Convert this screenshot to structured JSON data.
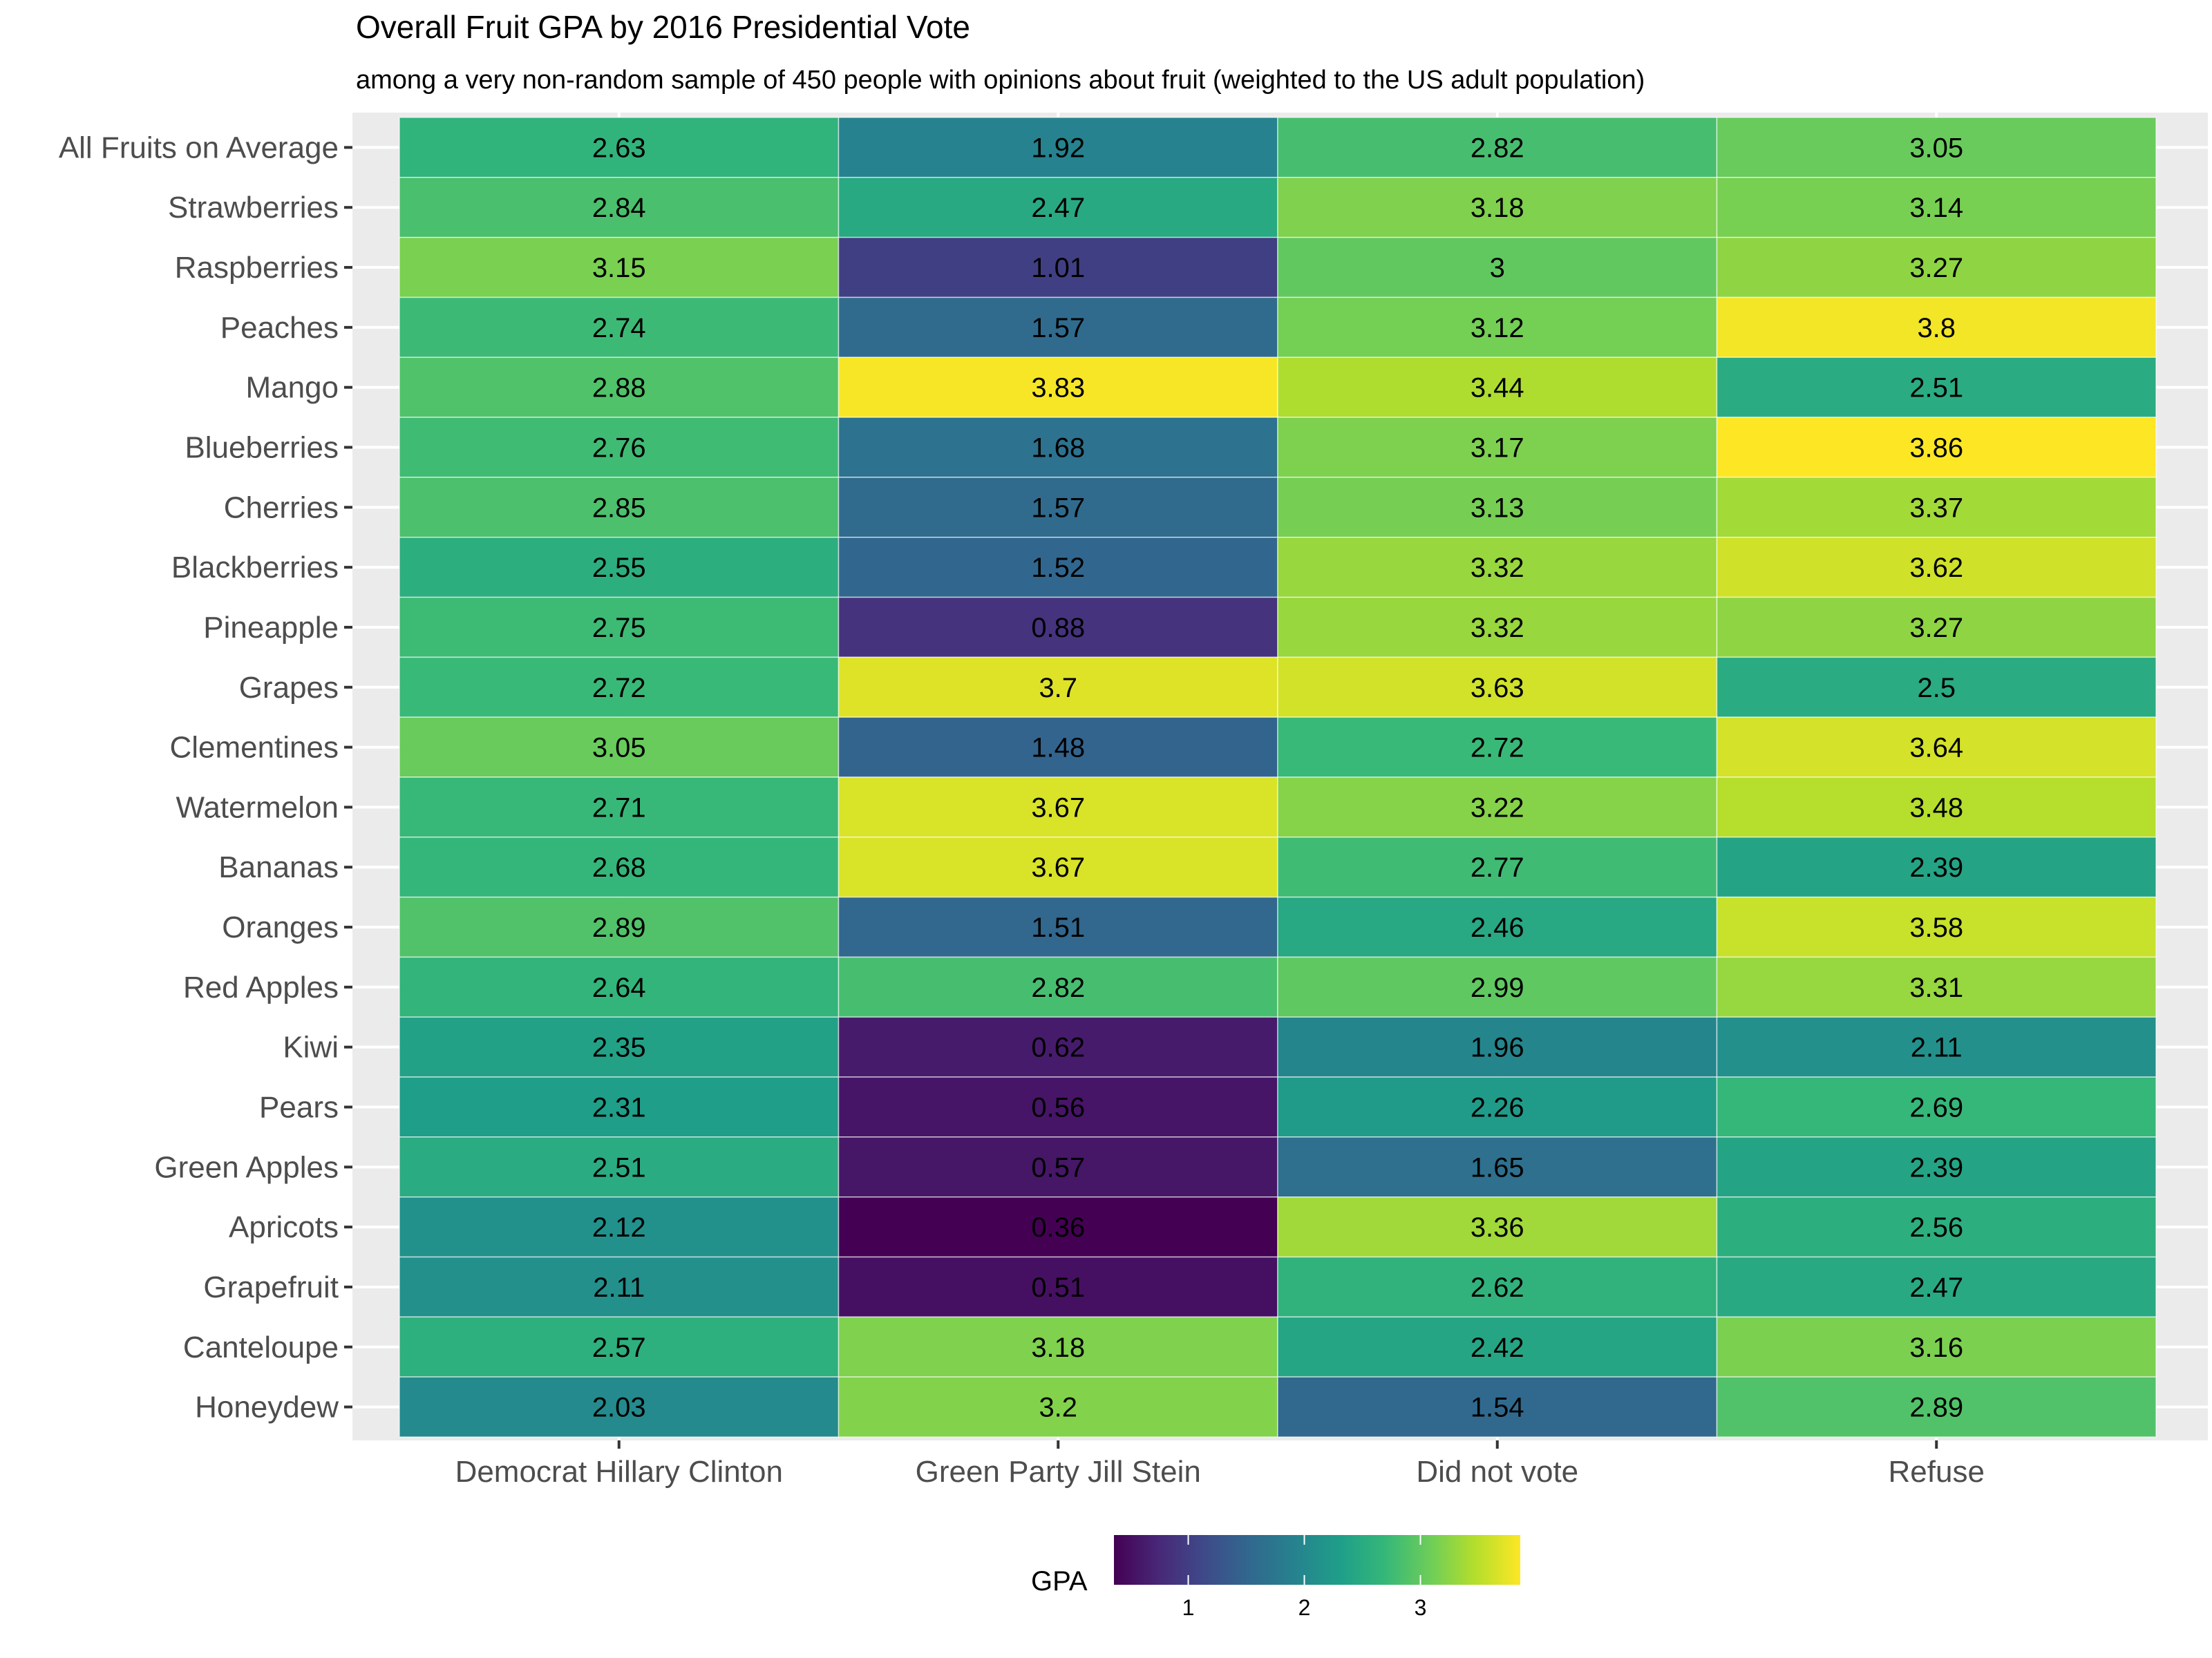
{
  "chart_data": {
    "type": "heatmap",
    "title": "Overall Fruit GPA by 2016 Presidential Vote",
    "subtitle": "among a very non-random sample of 450 people with opinions about fruit (weighted to the US adult population)",
    "xlabel": "",
    "ylabel": "",
    "x_categories": [
      "Democrat Hillary Clinton",
      "Green Party Jill Stein",
      "Did not vote",
      "Refuse"
    ],
    "y_categories": [
      "All Fruits on Average",
      "Strawberries",
      "Raspberries",
      "Peaches",
      "Mango",
      "Blueberries",
      "Cherries",
      "Blackberries",
      "Pineapple",
      "Grapes",
      "Clementines",
      "Watermelon",
      "Bananas",
      "Oranges",
      "Red Apples",
      "Kiwi",
      "Pears",
      "Green Apples",
      "Apricots",
      "Grapefruit",
      "Canteloupe",
      "Honeydew"
    ],
    "values": [
      [
        2.63,
        1.92,
        2.82,
        3.05
      ],
      [
        2.84,
        2.47,
        3.18,
        3.14
      ],
      [
        3.15,
        1.01,
        3,
        3.27
      ],
      [
        2.74,
        1.57,
        3.12,
        3.8
      ],
      [
        2.88,
        3.83,
        3.44,
        2.51
      ],
      [
        2.76,
        1.68,
        3.17,
        3.86
      ],
      [
        2.85,
        1.57,
        3.13,
        3.37
      ],
      [
        2.55,
        1.52,
        3.32,
        3.62
      ],
      [
        2.75,
        0.88,
        3.32,
        3.27
      ],
      [
        2.72,
        3.7,
        3.63,
        2.5
      ],
      [
        3.05,
        1.48,
        2.72,
        3.64
      ],
      [
        2.71,
        3.67,
        3.22,
        3.48
      ],
      [
        2.68,
        3.67,
        2.77,
        2.39
      ],
      [
        2.89,
        1.51,
        2.46,
        3.58
      ],
      [
        2.64,
        2.82,
        2.99,
        3.31
      ],
      [
        2.35,
        0.62,
        1.96,
        2.11
      ],
      [
        2.31,
        0.56,
        2.26,
        2.69
      ],
      [
        2.51,
        0.57,
        1.65,
        2.39
      ],
      [
        2.12,
        0.36,
        3.36,
        2.56
      ],
      [
        2.11,
        0.51,
        2.62,
        2.47
      ],
      [
        2.57,
        3.18,
        2.42,
        3.16
      ],
      [
        2.03,
        3.2,
        1.54,
        2.89
      ]
    ],
    "color_scale": {
      "name": "viridis",
      "domain": [
        0.36,
        3.86
      ],
      "stops": [
        "#440154",
        "#482878",
        "#3E4A89",
        "#31688E",
        "#26828E",
        "#1F9E89",
        "#35B779",
        "#6DCD59",
        "#B4DE2C",
        "#FDE725"
      ]
    },
    "legend": {
      "title": "GPA",
      "ticks": [
        1,
        2,
        3
      ],
      "position": "bottom"
    },
    "grid": true,
    "panel_background": "#EBEBEB"
  }
}
